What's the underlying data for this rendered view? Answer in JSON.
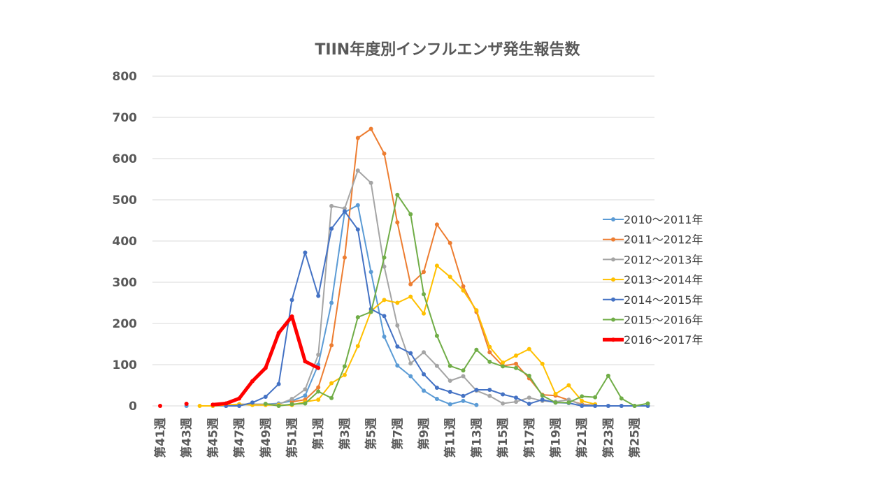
{
  "chart_data": {
    "type": "line",
    "title": "TIIN年度別インフルエンザ発生報告数",
    "xlabel": "",
    "ylabel": "",
    "ylim": [
      0,
      800
    ],
    "yticks": [
      "0",
      "100",
      "200",
      "300",
      "400",
      "500",
      "600",
      "700",
      "800"
    ],
    "categories": [
      "第41週",
      "第42週",
      "第43週",
      "第44週",
      "第45週",
      "第46週",
      "第47週",
      "第48週",
      "第49週",
      "第50週",
      "第51週",
      "第52週",
      "第1週",
      "第2週",
      "第3週",
      "第4週",
      "第5週",
      "第6週",
      "第7週",
      "第8週",
      "第9週",
      "第10週",
      "第11週",
      "第12週",
      "第13週",
      "第14週",
      "第15週",
      "第16週",
      "第17週",
      "第18週",
      "第19週",
      "第20週",
      "第21週",
      "第22週",
      "第23週",
      "第24週",
      "第25週",
      "第26週"
    ],
    "tick_labels": [
      "第41週",
      "第43週",
      "第45週",
      "第47週",
      "第49週",
      "第51週",
      "第1週",
      "第3週",
      "第5週",
      "第7週",
      "第9週",
      "第11週",
      "第13週",
      "第15週",
      "第17週",
      "第19週",
      "第21週",
      "第23週",
      "第25週"
    ],
    "legend_position": "right",
    "grid": true,
    "series": [
      {
        "name": "2010～2011年",
        "color": "#5B9BD5",
        "width": 2,
        "values": [
          null,
          null,
          0,
          null,
          0,
          0,
          2,
          4,
          4,
          6,
          12,
          25,
          100,
          250,
          470,
          487,
          325,
          168,
          98,
          72,
          37,
          17,
          4,
          12,
          2,
          null,
          null,
          null,
          null,
          null,
          null,
          null,
          null,
          null,
          null,
          null,
          null,
          null
        ]
      },
      {
        "name": "2011～2012年",
        "color": "#ED7D31",
        "width": 2,
        "values": [
          null,
          null,
          null,
          null,
          null,
          null,
          null,
          null,
          null,
          null,
          10,
          15,
          45,
          147,
          360,
          650,
          672,
          612,
          445,
          295,
          325,
          440,
          395,
          290,
          228,
          130,
          97,
          102,
          67,
          27,
          25,
          14,
          4,
          2,
          null,
          null,
          null,
          null
        ]
      },
      {
        "name": "2012～2013年",
        "color": "#A5A5A5",
        "width": 2,
        "values": [
          null,
          null,
          null,
          null,
          null,
          null,
          4,
          4,
          4,
          4,
          17,
          40,
          124,
          485,
          479,
          571,
          541,
          338,
          195,
          103,
          130,
          97,
          61,
          72,
          37,
          24,
          6,
          10,
          20,
          12,
          10,
          15,
          2,
          2,
          null,
          null,
          null,
          null
        ]
      },
      {
        "name": "2013～2014年",
        "color": "#FFC000",
        "width": 2,
        "values": [
          null,
          null,
          null,
          0,
          0,
          2,
          4,
          2,
          2,
          2,
          2,
          10,
          15,
          55,
          75,
          145,
          230,
          257,
          250,
          265,
          224,
          340,
          313,
          280,
          232,
          143,
          105,
          122,
          138,
          102,
          29,
          50,
          12,
          4,
          null,
          null,
          null,
          null
        ]
      },
      {
        "name": "2014～2015年",
        "color": "#4472C4",
        "width": 2,
        "values": [
          null,
          null,
          null,
          null,
          null,
          0,
          0,
          8,
          22,
          53,
          257,
          372,
          267,
          430,
          472,
          428,
          235,
          218,
          144,
          128,
          77,
          44,
          34,
          24,
          39,
          39,
          28,
          20,
          5,
          15,
          8,
          7,
          0,
          0,
          0,
          0,
          0,
          0
        ]
      },
      {
        "name": "2015～2016年",
        "color": "#70AD47",
        "width": 2,
        "values": [
          null,
          null,
          null,
          null,
          null,
          null,
          null,
          null,
          5,
          0,
          4,
          6,
          35,
          19,
          96,
          215,
          228,
          360,
          512,
          465,
          271,
          170,
          97,
          86,
          136,
          107,
          96,
          92,
          73,
          25,
          8,
          8,
          23,
          21,
          73,
          18,
          0,
          6
        ]
      },
      {
        "name": "2016～2017年",
        "color": "#FF0000",
        "width": 5,
        "values": [
          0,
          null,
          5,
          null,
          3,
          6,
          18,
          60,
          92,
          177,
          217,
          108,
          92,
          null,
          null,
          null,
          null,
          null,
          null,
          null,
          null,
          null,
          null,
          null,
          null,
          null,
          null,
          null,
          null,
          null,
          null,
          null,
          null,
          null,
          null,
          null,
          null,
          null
        ]
      }
    ]
  }
}
